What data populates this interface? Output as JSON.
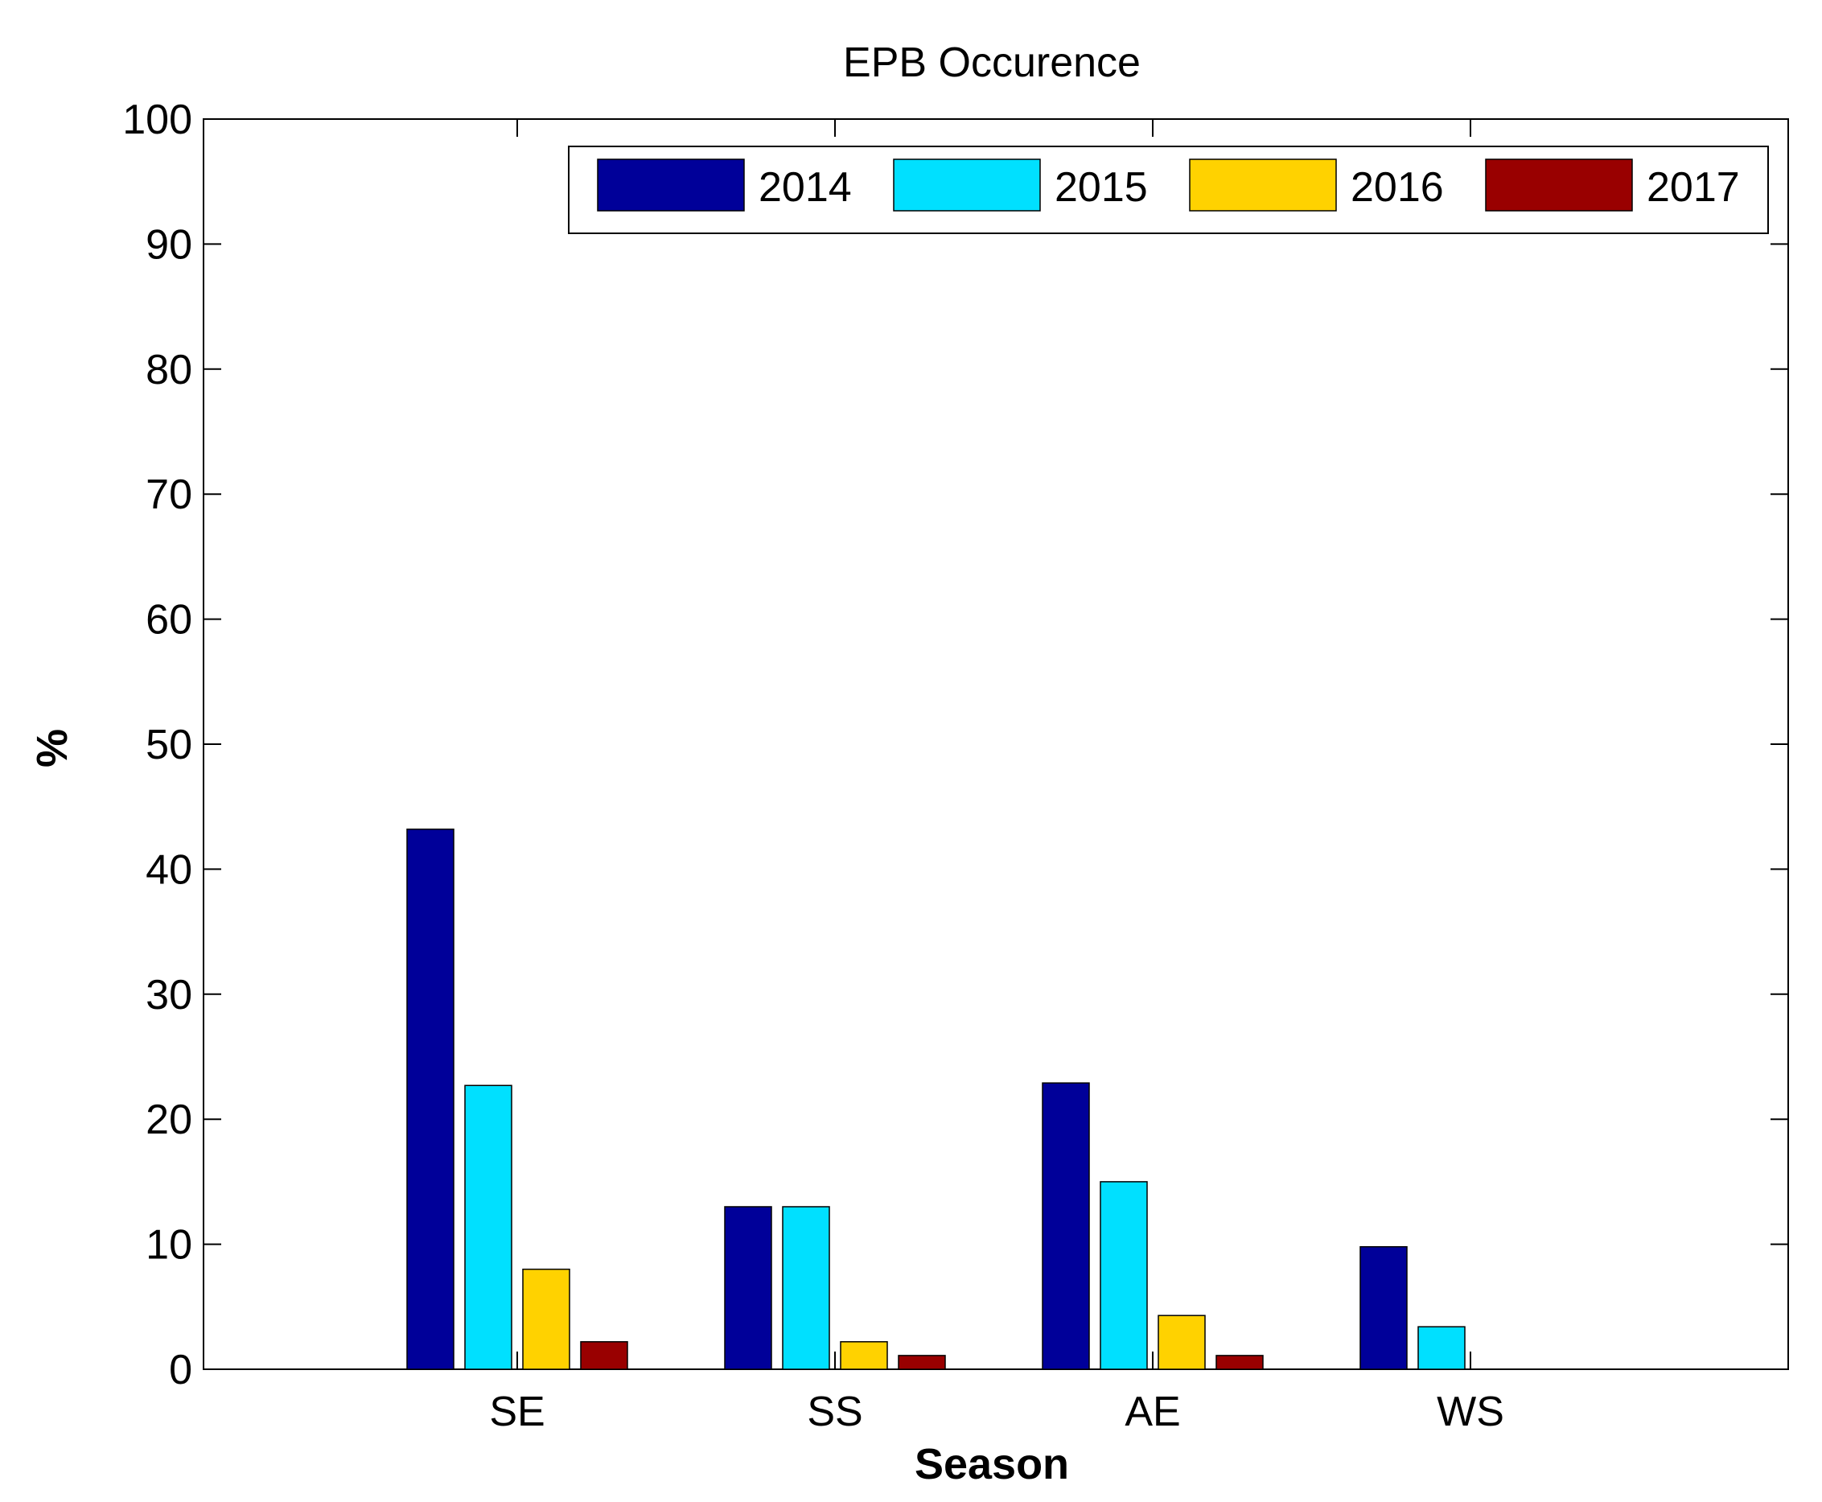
{
  "chart_data": {
    "type": "bar",
    "title": "EPB Occurence",
    "xlabel": "Season",
    "ylabel": "%",
    "categories": [
      "SE",
      "SS",
      "AE",
      "WS"
    ],
    "ylim": [
      0,
      100
    ],
    "yticks": [
      "0",
      "10",
      "20",
      "30",
      "40",
      "50",
      "60",
      "70",
      "80",
      "90",
      "100"
    ],
    "grid": false,
    "legend_position": "top-right",
    "series": [
      {
        "name": "2014",
        "color": "#000099",
        "values": [
          43.2,
          13.0,
          22.9,
          9.8
        ]
      },
      {
        "name": "2015",
        "color": "#00E0FF",
        "values": [
          22.7,
          13.0,
          15.0,
          3.4
        ]
      },
      {
        "name": "2016",
        "color": "#FFD200",
        "values": [
          8.0,
          2.2,
          4.3,
          0
        ]
      },
      {
        "name": "2017",
        "color": "#990000",
        "values": [
          2.2,
          1.1,
          1.1,
          0
        ]
      }
    ]
  }
}
